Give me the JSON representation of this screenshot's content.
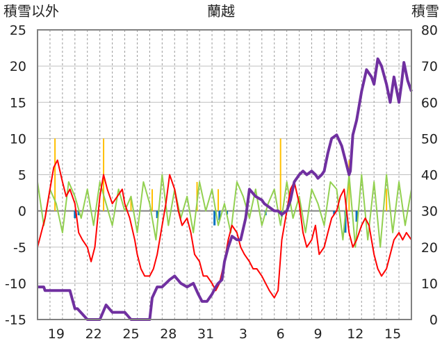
{
  "chart_data": {
    "type": "line",
    "title": "蘭越",
    "y_left_label": "積雪以外",
    "y_right_label": "積雪",
    "y_left_range": [
      -15,
      25
    ],
    "y_left_ticks": [
      "25",
      "20",
      "15",
      "10",
      "5",
      "0",
      "-5",
      "-10",
      "-15"
    ],
    "y_right_range": [
      0,
      80
    ],
    "y_right_ticks": [
      "80",
      "70",
      "60",
      "50",
      "40",
      "30",
      "20",
      "10",
      "0"
    ],
    "x_range_days": [
      0,
      30
    ],
    "x_ticks": [
      {
        "day": 1.5,
        "label": "19"
      },
      {
        "day": 4.5,
        "label": "22"
      },
      {
        "day": 7.5,
        "label": "25"
      },
      {
        "day": 10.5,
        "label": "28"
      },
      {
        "day": 13.5,
        "label": "31"
      },
      {
        "day": 16.5,
        "label": "3"
      },
      {
        "day": 19.5,
        "label": "6"
      },
      {
        "day": 22.5,
        "label": "9"
      },
      {
        "day": 25.5,
        "label": "12"
      },
      {
        "day": 28.5,
        "label": "15"
      }
    ],
    "grid": true,
    "colors": {
      "snow_depth": "#7030a0",
      "temperature": "#ff0000",
      "wind": "#92d050",
      "precipitation": "#ffc000",
      "snow_depth_change": "#0070c0",
      "zero_line": "#808080",
      "frame": "#808080"
    },
    "series": [
      {
        "key": "snow_depth",
        "axis": "right",
        "x": [
          0,
          0.5,
          0.6,
          1.5,
          2.0,
          2.6,
          3.0,
          3.2,
          4.0,
          4.3,
          4.6,
          5.0,
          5.5,
          6.0,
          7.0,
          7.5,
          8.4,
          8.6,
          9.0,
          9.2,
          9.6,
          10.0,
          10.3,
          10.6,
          11.0,
          11.5,
          12.0,
          12.5,
          12.9,
          13.2,
          13.6,
          14.0,
          14.3,
          14.5,
          14.8,
          15.0,
          15.3,
          15.6,
          16.0,
          16.3,
          16.7,
          17.0,
          17.5,
          18.0,
          18.2,
          18.6,
          19.0,
          19.3,
          19.6,
          20.0,
          20.3,
          20.6,
          21.0,
          21.3,
          21.6,
          22.0,
          22.3,
          22.5,
          22.8,
          23.0,
          23.3,
          23.6,
          24.0,
          24.4,
          24.7,
          25.0,
          25.1,
          25.3,
          25.6,
          26.0,
          26.4,
          26.8,
          27.0,
          27.3,
          27.6,
          28.0,
          28.3,
          28.6,
          29.0,
          29.2,
          29.4,
          29.7,
          30.0
        ],
        "y": [
          9,
          9,
          8,
          8,
          8,
          8,
          3,
          3,
          0,
          0,
          0,
          0,
          4,
          2,
          2,
          0,
          0,
          0,
          0,
          6,
          9,
          9,
          10,
          11,
          12,
          10,
          9,
          10,
          7,
          5,
          5,
          7,
          9,
          10,
          11,
          16,
          20,
          23,
          22,
          22,
          28,
          36,
          34,
          33,
          32,
          31,
          30,
          30,
          29,
          30,
          33,
          38,
          40,
          41,
          40,
          41,
          40,
          39,
          40,
          41,
          46,
          50,
          51,
          48,
          44,
          40,
          41,
          51,
          55,
          63,
          69,
          67,
          65,
          72,
          70,
          65,
          60,
          67,
          60,
          65,
          71,
          66,
          63
        ]
      },
      {
        "key": "temperature",
        "axis": "left",
        "x": [
          0,
          0.3,
          0.6,
          1.0,
          1.3,
          1.6,
          2.0,
          2.3,
          2.6,
          3.0,
          3.3,
          3.6,
          4.0,
          4.3,
          4.6,
          5.0,
          5.3,
          5.6,
          6.0,
          6.4,
          6.8,
          7.0,
          7.4,
          7.8,
          8.0,
          8.3,
          8.6,
          9.0,
          9.3,
          9.6,
          10.0,
          10.3,
          10.6,
          11.0,
          11.3,
          11.6,
          12.0,
          12.3,
          12.6,
          13.0,
          13.3,
          13.6,
          14.0,
          14.3,
          14.6,
          15.0,
          15.3,
          15.6,
          16.0,
          16.3,
          16.6,
          17.0,
          17.3,
          17.6,
          18.0,
          18.3,
          18.6,
          19.0,
          19.3,
          19.6,
          20.0,
          20.3,
          20.6,
          21.0,
          21.3,
          21.6,
          22.0,
          22.3,
          22.6,
          23.0,
          23.3,
          23.6,
          24.0,
          24.3,
          24.6,
          25.0,
          25.3,
          25.6,
          26.0,
          26.3,
          26.6,
          27.0,
          27.3,
          27.6,
          28.0,
          28.3,
          28.6,
          29.0,
          29.3,
          29.6,
          30.0
        ],
        "y": [
          -5,
          -3,
          -1,
          3,
          6,
          7,
          4,
          2,
          3,
          1,
          -3,
          -4,
          -5,
          -7,
          -5,
          2,
          5,
          3,
          1,
          2,
          3,
          1,
          -1,
          -4,
          -6,
          -8,
          -9,
          -9,
          -8,
          -6,
          -2,
          1,
          5,
          3,
          0,
          -2,
          -1,
          -3,
          -6,
          -7,
          -9,
          -9,
          -10,
          -11,
          -10,
          -7,
          -4,
          -2,
          -3,
          -5,
          -6,
          -7,
          -8,
          -8,
          -9,
          -10,
          -11,
          -12,
          -11,
          -4,
          0,
          3,
          4,
          1,
          -3,
          -5,
          -4,
          -2,
          -6,
          -5,
          -3,
          -1,
          0,
          2,
          3,
          -3,
          -5,
          -4,
          -2,
          -1,
          -2,
          -6,
          -8,
          -9,
          -8,
          -6,
          -4,
          -3,
          -4,
          -3,
          -4
        ]
      },
      {
        "key": "wind",
        "axis": "left",
        "x": [
          0,
          0.5,
          1.0,
          1.5,
          2.0,
          2.5,
          3.0,
          3.5,
          4.0,
          4.5,
          5.0,
          5.5,
          6.0,
          6.5,
          7.0,
          7.5,
          8.0,
          8.5,
          9.0,
          9.5,
          10.0,
          10.5,
          11.0,
          11.5,
          12.0,
          12.5,
          13.0,
          13.5,
          14.0,
          14.5,
          15.0,
          15.5,
          16.0,
          16.5,
          17.0,
          17.5,
          18.0,
          18.5,
          19.0,
          19.5,
          20.0,
          20.5,
          21.0,
          21.5,
          22.0,
          22.5,
          23.0,
          23.5,
          24.0,
          24.5,
          25.0,
          25.5,
          26.0,
          26.5,
          27.0,
          27.5,
          28.0,
          28.5,
          29.0,
          29.5,
          30.0
        ],
        "y": [
          4,
          -2,
          3,
          1,
          -3,
          4,
          2,
          -1,
          3,
          -2,
          4,
          1,
          -2,
          3,
          0,
          2,
          -3,
          4,
          1,
          -4,
          5,
          -2,
          3,
          -1,
          2,
          -3,
          4,
          0,
          3,
          -2,
          1,
          -3,
          4,
          2,
          -1,
          3,
          -2,
          1,
          3,
          -2,
          4,
          -1,
          2,
          -3,
          3,
          1,
          -2,
          4,
          3,
          -4,
          5,
          -5,
          5,
          -4,
          4,
          -5,
          5,
          -3,
          4,
          -2,
          3
        ]
      },
      {
        "key": "precipitation",
        "axis": "left",
        "x": [
          1.4,
          5.3,
          7.5,
          9.2,
          12.8,
          14.5,
          19.5,
          25.0,
          28.0
        ],
        "y": [
          10,
          10,
          2,
          3,
          4,
          3,
          10,
          7,
          3
        ]
      },
      {
        "key": "snow_depth_change",
        "axis": "left",
        "x": [
          3.0,
          3.3,
          9.6,
          14.2,
          14.6,
          15.2,
          18.3,
          19.6,
          23.8,
          24.7,
          25.6
        ],
        "y": [
          -1,
          -0.6,
          -1,
          -2,
          -1.3,
          -0.5,
          -0.6,
          -0.8,
          -0.5,
          -3,
          -1.5
        ]
      }
    ]
  }
}
